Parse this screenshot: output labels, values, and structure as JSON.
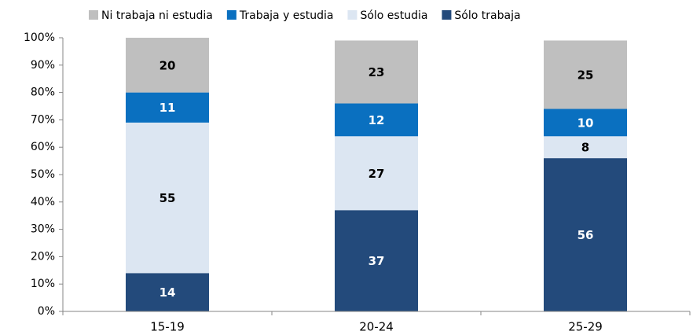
{
  "chart_data": {
    "type": "stacked_bar",
    "categories": [
      "15-19",
      "20-24",
      "25-29"
    ],
    "series": [
      {
        "name": "Sólo trabaja",
        "color": "#234a7b",
        "label_color": "#ffffff",
        "values": [
          14,
          37,
          56
        ]
      },
      {
        "name": "Sólo estudia",
        "color": "#dce6f2",
        "label_color": "#000000",
        "values": [
          55,
          27,
          8
        ]
      },
      {
        "name": "Trabaja y estudia",
        "color": "#0a70c0",
        "label_color": "#ffffff",
        "values": [
          11,
          12,
          10
        ]
      },
      {
        "name": "Ni trabaja ni estudia",
        "color": "#bfbfbf",
        "label_color": "#000000",
        "values": [
          20,
          23,
          25
        ]
      }
    ],
    "ylim": [
      0,
      100
    ],
    "yticks": [
      {
        "value": 0,
        "label": "0%"
      },
      {
        "value": 10,
        "label": "10%"
      },
      {
        "value": 20,
        "label": "20%"
      },
      {
        "value": 30,
        "label": "30%"
      },
      {
        "value": 40,
        "label": "40%"
      },
      {
        "value": 50,
        "label": "50%"
      },
      {
        "value": 60,
        "label": "60%"
      },
      {
        "value": 70,
        "label": "70%"
      },
      {
        "value": 80,
        "label": "80%"
      },
      {
        "value": 90,
        "label": "90%"
      },
      {
        "value": 100,
        "label": "100%"
      }
    ],
    "legend": "top"
  }
}
